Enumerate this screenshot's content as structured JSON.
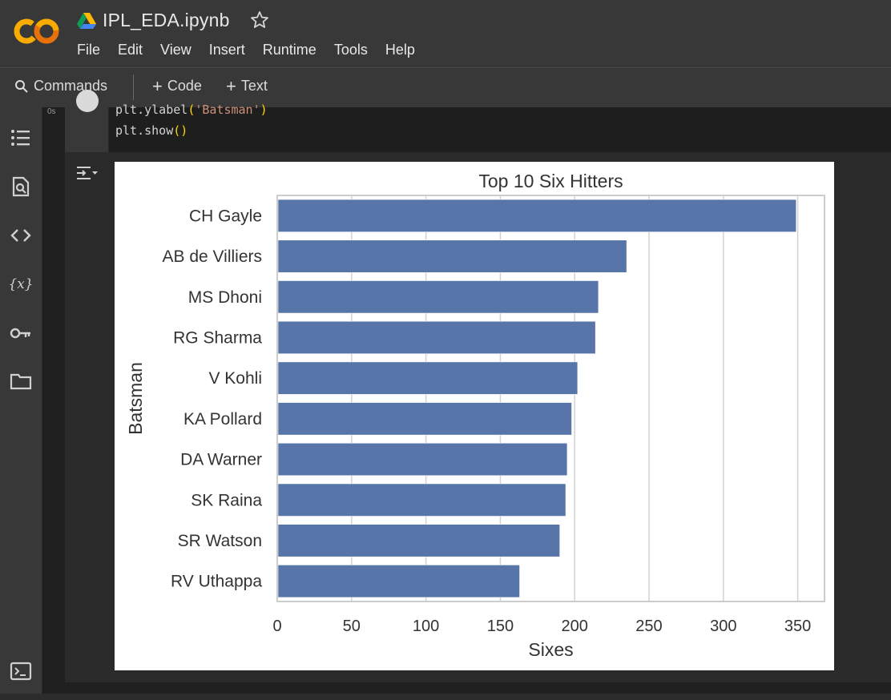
{
  "header": {
    "logo_text": "CO",
    "notebook_title": "IPL_EDA.ipynb",
    "menu": [
      "File",
      "Edit",
      "View",
      "Insert",
      "Runtime",
      "Tools",
      "Help"
    ]
  },
  "toolbar": {
    "commands_label": "Commands",
    "add_code_label": "Code",
    "add_text_label": "Text"
  },
  "sidebar_icons": [
    "table-of-contents-icon",
    "find-replace-icon",
    "code-snippets-icon",
    "variables-icon",
    "secrets-key-icon",
    "files-folder-icon",
    "terminal-icon"
  ],
  "cell": {
    "execution_label": "0s",
    "code_lines": [
      {
        "prefix": "plt.ylabel",
        "open": "(",
        "arg": "'Batsman'",
        "close": ")"
      },
      {
        "prefix": "plt.show",
        "open": "(",
        "arg": "",
        "close": ")"
      }
    ]
  },
  "colors": {
    "bar": "#5875a9",
    "grid": "#d2d2d2",
    "spine": "#cccccc",
    "text": "#333333"
  },
  "chart_data": {
    "type": "bar",
    "orientation": "horizontal",
    "title": "Top 10 Six Hitters",
    "xlabel": "Sixes",
    "ylabel": "Batsman",
    "categories": [
      "CH Gayle",
      "AB de Villiers",
      "MS Dhoni",
      "RG Sharma",
      "V Kohli",
      "KA Pollard",
      "DA Warner",
      "SK Raina",
      "SR Watson",
      "RV Uthappa"
    ],
    "values": [
      349,
      235,
      216,
      214,
      202,
      198,
      195,
      194,
      190,
      163
    ],
    "xlim": [
      0,
      368
    ],
    "xticks": [
      0,
      50,
      100,
      150,
      200,
      250,
      300,
      350
    ],
    "grid": "vertical"
  }
}
